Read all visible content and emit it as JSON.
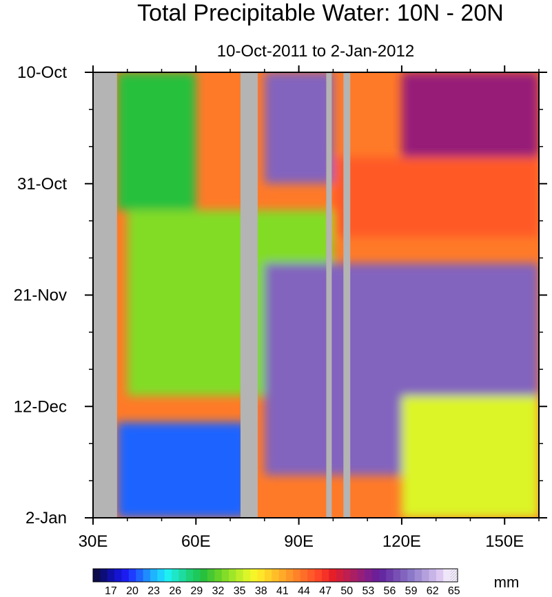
{
  "chart_data": {
    "type": "heatmap",
    "title": "Total Precipitable Water: 10N - 20N",
    "subtitle": "10-Oct-2011 to 2-Jan-2012",
    "x_axis": {
      "range": [
        30,
        160
      ],
      "ticks": [
        {
          "value": 30,
          "label": "30E"
        },
        {
          "value": 60,
          "label": "60E"
        },
        {
          "value": 90,
          "label": "90E"
        },
        {
          "value": 120,
          "label": "120E"
        },
        {
          "value": 150,
          "label": "150E"
        }
      ]
    },
    "y_axis": {
      "range": [
        "2011-10-10",
        "2012-01-02"
      ],
      "orientation": "time increases downward",
      "ticks": [
        {
          "value": "2011-10-10",
          "label": "10-Oct"
        },
        {
          "value": "2011-10-31",
          "label": "31-Oct"
        },
        {
          "value": "2011-11-21",
          "label": "21-Nov"
        },
        {
          "value": "2011-12-12",
          "label": "12-Dec"
        },
        {
          "value": "2012-01-02",
          "label": "2-Jan"
        }
      ]
    },
    "colorbar": {
      "units": "mm",
      "labels": [
        "17",
        "20",
        "23",
        "26",
        "29",
        "32",
        "35",
        "38",
        "41",
        "44",
        "47",
        "50",
        "53",
        "56",
        "59",
        "62",
        "65"
      ],
      "levels": [
        15,
        16,
        17,
        18,
        19,
        20,
        21,
        22,
        23,
        24,
        25,
        26,
        27,
        28,
        29,
        30,
        31,
        32,
        33,
        34,
        35,
        36,
        37,
        38,
        39,
        40,
        41,
        42,
        43,
        44,
        45,
        46,
        47,
        48,
        49,
        50,
        51,
        52,
        53,
        54,
        55,
        56,
        57,
        58,
        59,
        60,
        61,
        62,
        63,
        64,
        65
      ],
      "colors": [
        "#0b0b4a",
        "#0d0d78",
        "#1010a8",
        "#1414d2",
        "#1c1cf0",
        "#1e3cff",
        "#1e64ff",
        "#1e8cff",
        "#1eb4ff",
        "#1ed2ff",
        "#1ef0f0",
        "#1ee6c8",
        "#1edca0",
        "#1ed278",
        "#1ec85a",
        "#28c03c",
        "#46c832",
        "#64d228",
        "#82dc28",
        "#a0e628",
        "#beee28",
        "#dcf528",
        "#f5f528",
        "#ffe628",
        "#ffd228",
        "#ffbe28",
        "#ffaa28",
        "#ff9628",
        "#ff8228",
        "#ff6e28",
        "#ff5a28",
        "#ff4628",
        "#f53228",
        "#e61e28",
        "#d21e3c",
        "#be1e50",
        "#aa1e64",
        "#961e78",
        "#821e8c",
        "#6e1e96",
        "#6428a0",
        "#6e3caa",
        "#7850b4",
        "#8264be",
        "#8c78c8",
        "#a08cd2",
        "#b4a0dc",
        "#c8b4e6",
        "#dcc8f0",
        "#f0e6fa",
        "#ffffff"
      ]
    },
    "masked_longitude_bands": [
      [
        30,
        37
      ],
      [
        73,
        78
      ],
      [
        98,
        99.6
      ],
      [
        103,
        105
      ]
    ],
    "features": [
      {
        "lon_range": [
          120,
          160
        ],
        "date_range": [
          "2011-10-10",
          "2011-10-26"
        ],
        "value_mm": 52
      },
      {
        "lon_range": [
          100,
          160
        ],
        "date_range": [
          "2011-10-26",
          "2011-11-10"
        ],
        "value_mm": 45
      },
      {
        "lon_range": [
          37,
          60
        ],
        "date_range": [
          "2011-10-10",
          "2011-11-05"
        ],
        "value_mm": 30
      },
      {
        "lon_range": [
          40,
          100
        ],
        "date_range": [
          "2011-11-05",
          "2011-12-10"
        ],
        "value_mm": 33
      },
      {
        "lon_range": [
          37,
          75
        ],
        "date_range": [
          "2011-12-15",
          "2012-01-02"
        ],
        "value_mm": 21
      },
      {
        "lon_range": [
          80,
          160
        ],
        "date_range": [
          "2011-11-15",
          "2011-12-25"
        ],
        "value_mm": 58
      },
      {
        "lon_range": [
          120,
          160
        ],
        "date_range": [
          "2011-12-10",
          "2012-01-02"
        ],
        "value_mm": 36
      },
      {
        "lon_range": [
          80,
          100
        ],
        "date_range": [
          "2011-10-10",
          "2011-10-31"
        ],
        "value_mm": 58
      }
    ]
  }
}
